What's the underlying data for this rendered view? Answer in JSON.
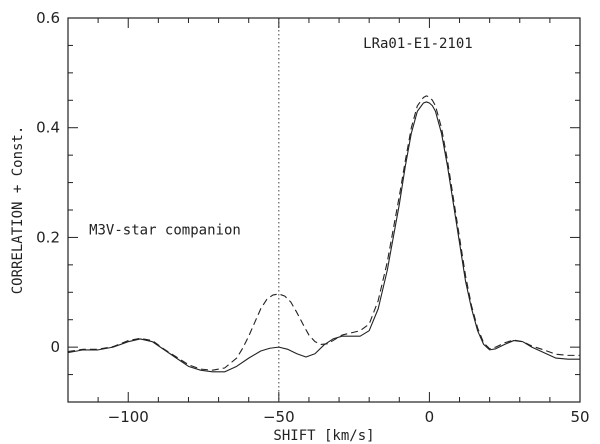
{
  "chart_data": {
    "type": "line",
    "title": "",
    "xlabel": "SHIFT [km/s]",
    "ylabel": "CORRELATION + Const.",
    "xlim": [
      -120,
      50
    ],
    "ylim": [
      -0.1,
      0.6
    ],
    "x_ticks": [
      -100,
      -50,
      0,
      50
    ],
    "x_tick_labels": [
      "−100",
      "−50",
      "0",
      "50"
    ],
    "y_ticks": [
      0,
      0.2,
      0.4,
      0.6
    ],
    "y_tick_labels": [
      "0",
      "0.2",
      "0.4",
      "0.6"
    ],
    "grid": false,
    "legend": "none",
    "annotations": [
      {
        "text": "LRa01-E1-2101",
        "x": -22,
        "y": 0.545
      },
      {
        "text": "M3V-star companion",
        "x": -113,
        "y": 0.205
      }
    ],
    "reference_lines": [
      {
        "axis": "x",
        "value": -50,
        "style": "dotted"
      }
    ],
    "series": [
      {
        "style": "solid",
        "x": [
          -120,
          -115,
          -110,
          -105,
          -100,
          -96,
          -92,
          -88,
          -84,
          -80,
          -76,
          -72,
          -68,
          -64,
          -60,
          -56,
          -53,
          -50,
          -47,
          -44,
          -41,
          -38,
          -35,
          -32,
          -29,
          -26,
          -23,
          -20,
          -17,
          -14,
          -12,
          -10,
          -8,
          -6,
          -4,
          -2,
          -1,
          0,
          1,
          2,
          4,
          6,
          8,
          10,
          12,
          14,
          16,
          18,
          20,
          22,
          25,
          28,
          31,
          34,
          38,
          42,
          46,
          50
        ],
        "y": [
          -0.01,
          -0.005,
          -0.005,
          0.0,
          0.01,
          0.015,
          0.01,
          -0.005,
          -0.02,
          -0.035,
          -0.042,
          -0.045,
          -0.045,
          -0.035,
          -0.02,
          -0.007,
          -0.002,
          0.0,
          -0.004,
          -0.012,
          -0.018,
          -0.012,
          0.004,
          0.015,
          0.02,
          0.02,
          0.02,
          0.03,
          0.07,
          0.14,
          0.2,
          0.26,
          0.33,
          0.39,
          0.43,
          0.445,
          0.447,
          0.445,
          0.44,
          0.43,
          0.39,
          0.33,
          0.26,
          0.19,
          0.12,
          0.07,
          0.03,
          0.005,
          -0.005,
          -0.003,
          0.005,
          0.012,
          0.01,
          0.0,
          -0.01,
          -0.02,
          -0.022,
          -0.022
        ]
      },
      {
        "style": "dashed",
        "x": [
          -120,
          -115,
          -110,
          -105,
          -100,
          -96,
          -92,
          -88,
          -84,
          -80,
          -76,
          -72,
          -68,
          -64,
          -62,
          -60,
          -58,
          -56,
          -54,
          -52,
          -50,
          -48,
          -46,
          -44,
          -42,
          -40,
          -38,
          -36,
          -34,
          -32,
          -29,
          -26,
          -23,
          -20,
          -17,
          -14,
          -12,
          -10,
          -8,
          -6,
          -4,
          -2,
          -1,
          0,
          1,
          2,
          4,
          6,
          8,
          10,
          12,
          14,
          16,
          18,
          20,
          22,
          25,
          28,
          31,
          34,
          38,
          42,
          46,
          50
        ],
        "y": [
          -0.008,
          -0.004,
          -0.004,
          0.001,
          0.012,
          0.016,
          0.012,
          -0.004,
          -0.018,
          -0.032,
          -0.04,
          -0.042,
          -0.038,
          -0.02,
          -0.002,
          0.02,
          0.045,
          0.07,
          0.087,
          0.095,
          0.097,
          0.093,
          0.082,
          0.063,
          0.042,
          0.022,
          0.01,
          0.005,
          0.006,
          0.012,
          0.022,
          0.026,
          0.03,
          0.042,
          0.085,
          0.155,
          0.215,
          0.275,
          0.34,
          0.4,
          0.44,
          0.455,
          0.458,
          0.456,
          0.45,
          0.44,
          0.4,
          0.34,
          0.27,
          0.2,
          0.13,
          0.075,
          0.035,
          0.008,
          -0.003,
          0.0,
          0.008,
          0.013,
          0.01,
          0.002,
          -0.005,
          -0.013,
          -0.015,
          -0.015
        ]
      }
    ]
  }
}
